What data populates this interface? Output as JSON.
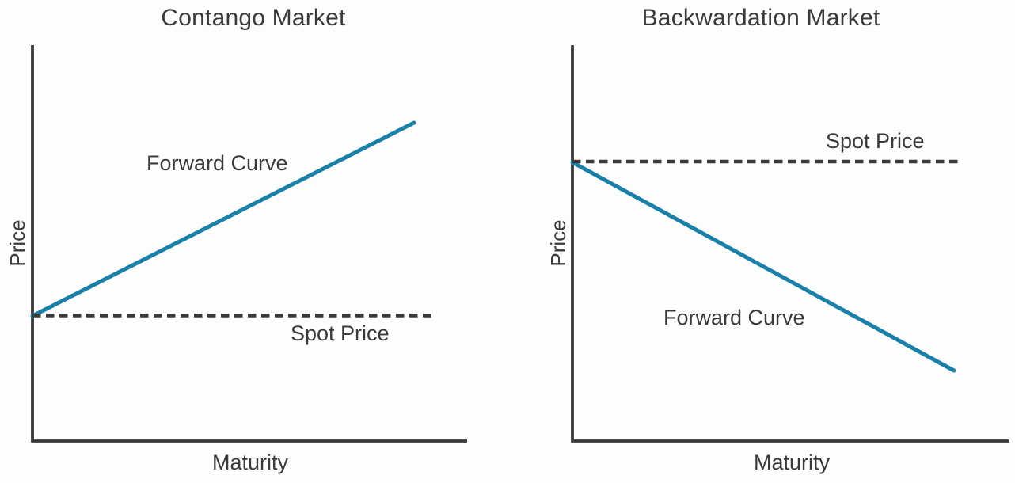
{
  "colors": {
    "background": "#fdfdfd",
    "axis": "#3a3a3c",
    "text": "#3a3a3a",
    "forward_curve": "#1a80a8",
    "spot_price_dash": "#3a3a3c"
  },
  "chart_data": [
    {
      "type": "line",
      "title": "Contango Market",
      "xlabel": "Maturity",
      "ylabel": "Price",
      "grid": false,
      "axes_numeric": false,
      "x_range": [
        0,
        1
      ],
      "y_range": [
        0,
        1
      ],
      "legend_position": "none",
      "series": [
        {
          "name": "Forward Curve",
          "style": "solid",
          "color": "#1a80a8",
          "points": [
            [
              0,
              0.316
            ],
            [
              0.878,
              0.804
            ]
          ],
          "description": "Upward-sloping forward curve starting at the spot price on the y-axis"
        },
        {
          "name": "Spot Price",
          "style": "dashed",
          "color": "#3a3a3c",
          "points": [
            [
              0,
              0.317
            ],
            [
              0.918,
              0.317
            ]
          ],
          "description": "Horizontal dashed line at the spot price level"
        }
      ]
    },
    {
      "type": "line",
      "title": "Backwardation Market",
      "xlabel": "Maturity",
      "ylabel": "Price",
      "grid": false,
      "axes_numeric": false,
      "x_range": [
        0,
        1
      ],
      "y_range": [
        0,
        1
      ],
      "legend_position": "none",
      "series": [
        {
          "name": "Forward Curve",
          "style": "solid",
          "color": "#1a80a8",
          "points": [
            [
              0,
              0.704
            ],
            [
              0.873,
              0.178
            ]
          ],
          "description": "Downward-sloping forward curve starting at the spot price on the y-axis"
        },
        {
          "name": "Spot Price",
          "style": "dashed",
          "color": "#3a3a3c",
          "points": [
            [
              0,
              0.706
            ],
            [
              0.888,
              0.706
            ]
          ],
          "description": "Horizontal dashed line at the spot price level"
        }
      ]
    }
  ]
}
